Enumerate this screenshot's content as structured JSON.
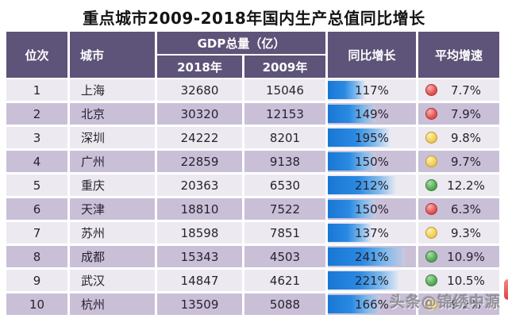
{
  "title": "重点城市2009-2018年国内生产总值同比增长",
  "watermark": "头条@锦绣中源",
  "colors": {
    "header_bg": "#5e5378",
    "row_odd": "#ece9f1",
    "row_even": "#c9c0d8",
    "bar_blue": "#1e82dc",
    "light_red": "#e35454",
    "light_yellow": "#f2cd55",
    "light_green": "#57ac57"
  },
  "table": {
    "headers": {
      "rank": "位次",
      "city": "城市",
      "gdp_group": "GDP总量（亿）",
      "year_2018": "2018年",
      "year_2009": "2009年",
      "yoy_growth": "同比增长",
      "avg_growth": "平均增速"
    },
    "rows": [
      {
        "rank": "1",
        "city": "上海",
        "gdp_2018": "32680",
        "gdp_2009": "15046",
        "yoy": "117%",
        "light": "red",
        "avg": "7.7%"
      },
      {
        "rank": "2",
        "city": "北京",
        "gdp_2018": "30320",
        "gdp_2009": "12153",
        "yoy": "149%",
        "light": "red",
        "avg": "7.9%"
      },
      {
        "rank": "3",
        "city": "深圳",
        "gdp_2018": "24222",
        "gdp_2009": "8201",
        "yoy": "195%",
        "light": "yellow",
        "avg": "9.8%"
      },
      {
        "rank": "4",
        "city": "广州",
        "gdp_2018": "22859",
        "gdp_2009": "9138",
        "yoy": "150%",
        "light": "yellow",
        "avg": "9.7%"
      },
      {
        "rank": "5",
        "city": "重庆",
        "gdp_2018": "20363",
        "gdp_2009": "6530",
        "yoy": "212%",
        "light": "green",
        "avg": "12.2%"
      },
      {
        "rank": "6",
        "city": "天津",
        "gdp_2018": "18810",
        "gdp_2009": "7522",
        "yoy": "150%",
        "light": "red",
        "avg": "6.3%"
      },
      {
        "rank": "7",
        "city": "苏州",
        "gdp_2018": "18598",
        "gdp_2009": "7851",
        "yoy": "137%",
        "light": "yellow",
        "avg": "9.3%"
      },
      {
        "rank": "8",
        "city": "成都",
        "gdp_2018": "15343",
        "gdp_2009": "4503",
        "yoy": "241%",
        "light": "green",
        "avg": "10.9%"
      },
      {
        "rank": "9",
        "city": "武汉",
        "gdp_2018": "14847",
        "gdp_2009": "4621",
        "yoy": "221%",
        "light": "green",
        "avg": "10.5%"
      },
      {
        "rank": "10",
        "city": "杭州",
        "gdp_2018": "13509",
        "gdp_2009": "5088",
        "yoy": "166%",
        "light": "yellow",
        "avg": "9.2%"
      }
    ]
  },
  "chart_data": {
    "type": "table",
    "title": "重点城市2009-2018年国内生产总值同比增长",
    "columns": [
      "位次",
      "城市",
      "GDP总量（亿）2018年",
      "GDP总量（亿）2009年",
      "同比增长",
      "平均增速"
    ],
    "rows": [
      [
        1,
        "上海",
        32680,
        15046,
        "117%",
        "7.7%"
      ],
      [
        2,
        "北京",
        30320,
        12153,
        "149%",
        "7.9%"
      ],
      [
        3,
        "深圳",
        24222,
        8201,
        "195%",
        "9.8%"
      ],
      [
        4,
        "广州",
        22859,
        9138,
        "150%",
        "9.7%"
      ],
      [
        5,
        "重庆",
        20363,
        6530,
        "212%",
        "12.2%"
      ],
      [
        6,
        "天津",
        18810,
        7522,
        "150%",
        "6.3%"
      ],
      [
        7,
        "苏州",
        18598,
        7851,
        "137%",
        "9.3%"
      ],
      [
        8,
        "成都",
        15343,
        4503,
        "241%",
        "10.9%"
      ],
      [
        9,
        "武汉",
        14847,
        4621,
        "221%",
        "10.5%"
      ],
      [
        10,
        "杭州",
        13509,
        5088,
        "166%",
        "9.2%"
      ]
    ],
    "yoy_growth_values_pct": [
      117,
      149,
      195,
      150,
      212,
      150,
      137,
      241,
      221,
      166
    ],
    "avg_growth_values_pct": [
      7.7,
      7.9,
      9.8,
      9.7,
      12.2,
      6.3,
      9.3,
      10.9,
      10.5,
      9.2
    ],
    "traffic_lights": [
      "red",
      "red",
      "yellow",
      "yellow",
      "green",
      "red",
      "yellow",
      "green",
      "green",
      "yellow"
    ],
    "notes": "同比增长 column shows blue data bars proportional to value; 平均增速 column shows red/yellow/green status circles"
  }
}
